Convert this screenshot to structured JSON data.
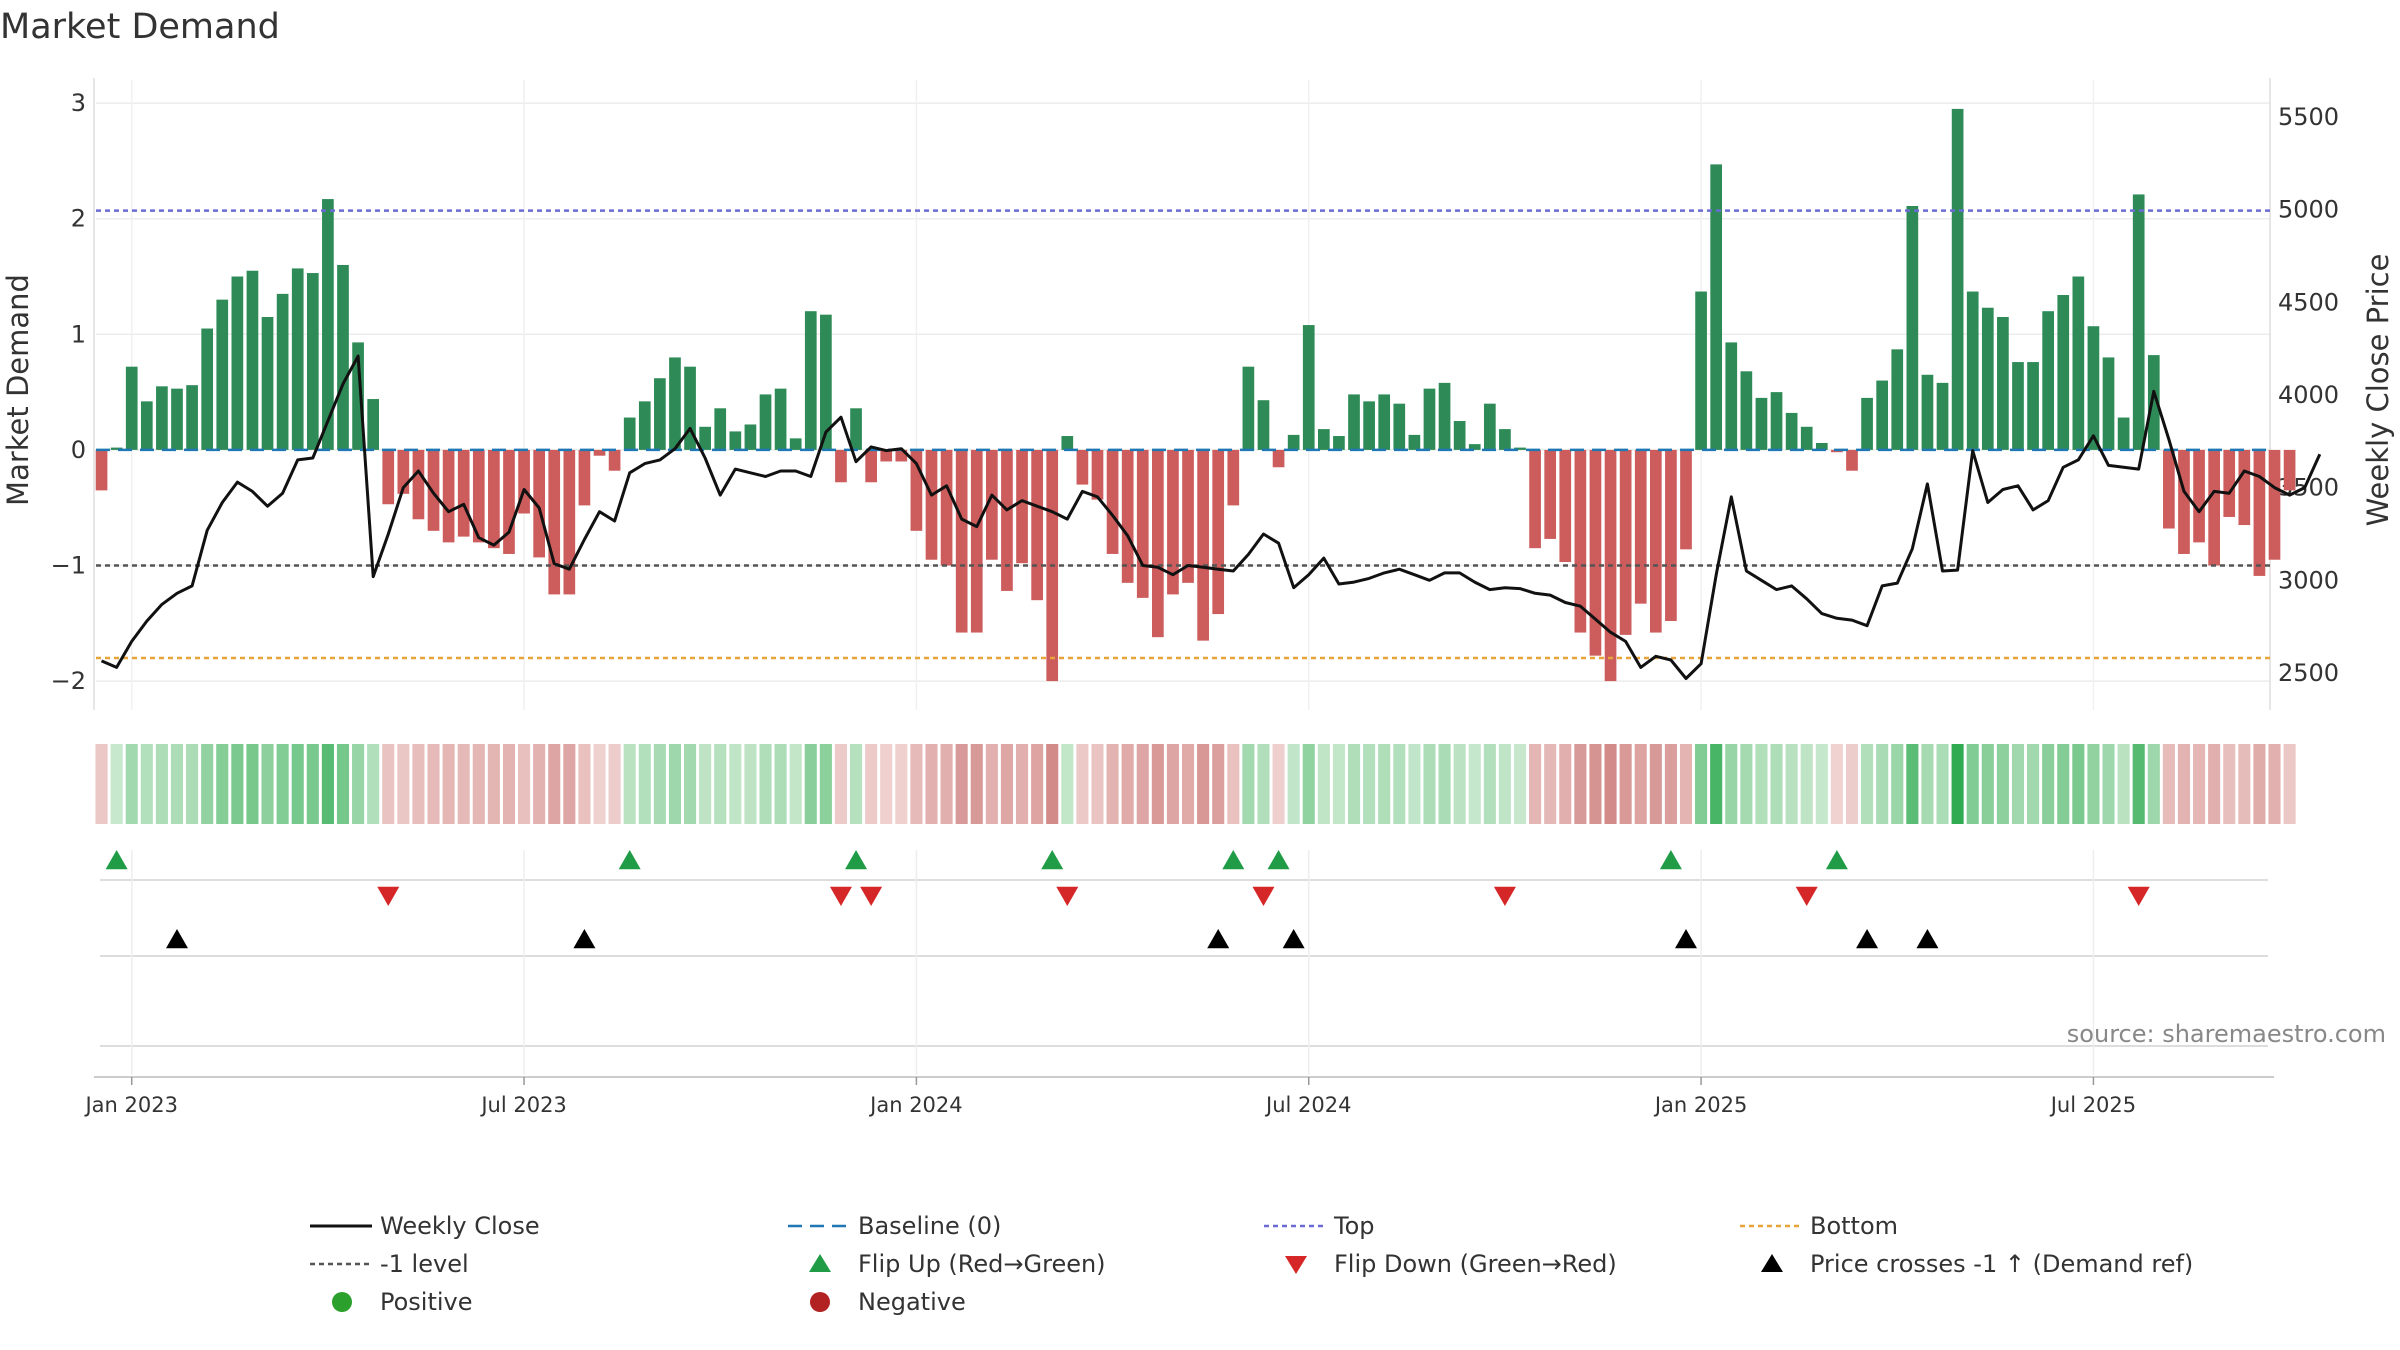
{
  "chart_data": {
    "type": "bar",
    "title": "Market Demand",
    "ylabel_left": "Market Demand",
    "ylabel_right": "Weekly Close Price",
    "source": "source: sharemaestro.com",
    "ylim_left": [
      -2.25,
      3.2
    ],
    "yticks_left": [
      "3",
      "2",
      "1",
      "0",
      "−1",
      "−2"
    ],
    "ylim_right": [
      2300,
      5700
    ],
    "yticks_right": [
      "5500",
      "5000",
      "4500",
      "4000",
      "3500",
      "3000",
      "2500"
    ],
    "xticks": [
      "Jan 2023",
      "Jul 2023",
      "Jan 2024",
      "Jul 2024",
      "Jan 2025",
      "Jul 2025"
    ],
    "xtick_weeks": [
      2,
      28,
      54,
      80,
      106,
      132
    ],
    "reference_lines": {
      "top": 2.07,
      "bottom": -1.8,
      "minus_one": -1,
      "baseline": 0
    },
    "demand": [
      -0.35,
      0.02,
      0.72,
      0.42,
      0.55,
      0.53,
      0.56,
      1.05,
      1.3,
      1.5,
      1.55,
      1.15,
      1.35,
      1.57,
      1.53,
      2.17,
      1.6,
      0.93,
      0.44,
      -0.47,
      -0.38,
      -0.6,
      -0.7,
      -0.8,
      -0.75,
      -0.8,
      -0.85,
      -0.9,
      -0.55,
      -0.93,
      -1.25,
      -1.25,
      -0.48,
      -0.05,
      -0.18,
      0.28,
      0.42,
      0.62,
      0.8,
      0.72,
      0.2,
      0.36,
      0.16,
      0.22,
      0.48,
      0.53,
      0.1,
      1.2,
      1.17,
      -0.28,
      0.36,
      -0.28,
      -0.1,
      -0.1,
      -0.7,
      -0.95,
      -1.0,
      -1.58,
      -1.58,
      -0.95,
      -1.22,
      -0.98,
      -1.3,
      -2.0,
      0.12,
      -0.3,
      -0.43,
      -0.9,
      -1.15,
      -1.28,
      -1.62,
      -1.25,
      -1.15,
      -1.65,
      -1.42,
      -0.48,
      0.72,
      0.43,
      -0.15,
      0.13,
      1.08,
      0.18,
      0.12,
      0.48,
      0.42,
      0.48,
      0.4,
      0.13,
      0.53,
      0.58,
      0.25,
      0.05,
      0.4,
      0.18,
      0.02,
      -0.85,
      -0.77,
      -0.97,
      -1.58,
      -1.78,
      -2.0,
      -1.6,
      -1.33,
      -1.58,
      -1.48,
      -0.86,
      1.37,
      2.47,
      0.93,
      0.68,
      0.45,
      0.5,
      0.32,
      0.2,
      0.06,
      -0.02,
      -0.18,
      0.45,
      0.6,
      0.87,
      2.11,
      0.65,
      0.58,
      2.95,
      1.37,
      1.23,
      1.15,
      0.76,
      0.76,
      1.2,
      1.34,
      1.5,
      1.07,
      0.8,
      0.28,
      2.21,
      0.82,
      -0.68,
      -0.9,
      -0.8,
      -1.0,
      -0.58,
      -0.65,
      -1.09,
      -0.95,
      -0.35
    ],
    "weekly_close": [
      2565,
      2530,
      2670,
      2780,
      2870,
      2930,
      2970,
      3270,
      3420,
      3530,
      3480,
      3400,
      3470,
      3650,
      3660,
      3860,
      4060,
      4210,
      3020,
      3250,
      3500,
      3590,
      3470,
      3370,
      3410,
      3230,
      3190,
      3260,
      3490,
      3390,
      3090,
      3060,
      3220,
      3370,
      3320,
      3580,
      3630,
      3650,
      3710,
      3820,
      3660,
      3460,
      3600,
      3580,
      3560,
      3590,
      3590,
      3560,
      3800,
      3880,
      3640,
      3720,
      3700,
      3710,
      3630,
      3460,
      3510,
      3330,
      3290,
      3460,
      3380,
      3430,
      3400,
      3370,
      3330,
      3480,
      3450,
      3350,
      3240,
      3080,
      3070,
      3030,
      3080,
      3070,
      3060,
      3050,
      3140,
      3250,
      3200,
      2960,
      3030,
      3120,
      2980,
      2990,
      3010,
      3040,
      3060,
      3030,
      3000,
      3040,
      3040,
      2990,
      2950,
      2960,
      2955,
      2930,
      2920,
      2880,
      2860,
      2790,
      2720,
      2670,
      2530,
      2590,
      2570,
      2470,
      2550,
      3030,
      3450,
      3050,
      3000,
      2950,
      2970,
      2900,
      2820,
      2795,
      2785,
      2755,
      2970,
      2985,
      3170,
      3520,
      3050,
      3055,
      3700,
      3420,
      3490,
      3510,
      3380,
      3430,
      3610,
      3650,
      3780,
      3620,
      3610,
      3600,
      4020,
      3760,
      3480,
      3370,
      3480,
      3470,
      3590,
      3560,
      3500,
      3460,
      3500,
      3680
    ],
    "flip_up_weeks": [
      1,
      35,
      50,
      63,
      75,
      78,
      104,
      115
    ],
    "flip_down_weeks": [
      19,
      49,
      51,
      64,
      77,
      93,
      113,
      135
    ],
    "price_cross_weeks": [
      5,
      32,
      74,
      79,
      105,
      117,
      121
    ],
    "legend": [
      {
        "label": "Weekly Close",
        "type": "line",
        "color": "#111111"
      },
      {
        "label": "Baseline (0)",
        "type": "dash",
        "color": "#1f77b4"
      },
      {
        "label": "Top",
        "type": "dot",
        "color": "#6b6bd6"
      },
      {
        "label": "Bottom",
        "type": "dot",
        "color": "#e8a33a"
      },
      {
        "label": "-1 level",
        "type": "dot",
        "color": "#555555"
      },
      {
        "label": "Flip Up (Red→Green)",
        "type": "tri-up",
        "color": "#1f9c45"
      },
      {
        "label": "Flip Down (Green→Red)",
        "type": "tri-down",
        "color": "#d62728"
      },
      {
        "label": "Price crosses -1 ↑ (Demand ref)",
        "type": "tri-up",
        "color": "#000000"
      },
      {
        "label": "Positive",
        "type": "circle",
        "color": "#2ca02c"
      },
      {
        "label": "Negative",
        "type": "circle",
        "color": "#b22222"
      }
    ],
    "colors": {
      "positive_bar": "#2e8b57",
      "negative_bar": "#cd5c5c",
      "line": "#111111",
      "baseline": "#1f77b4",
      "top": "#6b6bd6",
      "bottom": "#e8a33a",
      "minus_one": "#555555",
      "flip_up": "#1f9c45",
      "flip_down": "#d62728",
      "price_cross": "#000000"
    }
  }
}
